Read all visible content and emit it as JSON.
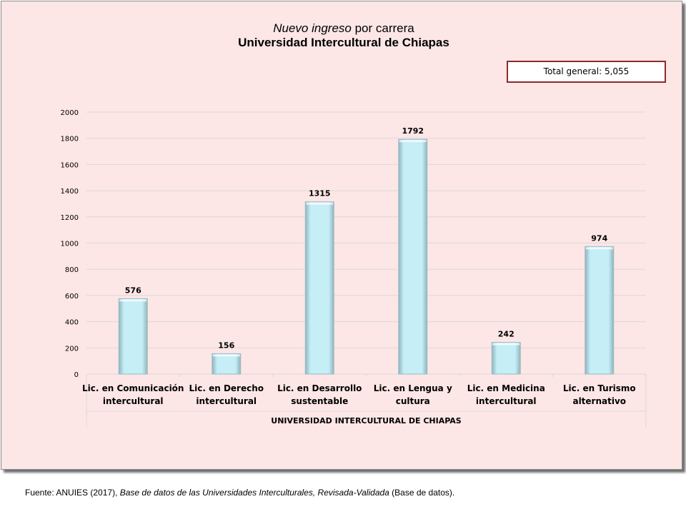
{
  "chart_data": {
    "type": "bar",
    "title_italic": "Nuevo ingreso",
    "title_rest": " por carrera",
    "subtitle": "Universidad Intercultural de Chiapas",
    "categories": [
      [
        "Lic. en Comunicación",
        "intercultural"
      ],
      [
        "Lic. en Derecho",
        "intercultural"
      ],
      [
        "Lic. en Desarrollo",
        "sustentable"
      ],
      [
        "Lic. en Lengua y",
        "cultura"
      ],
      [
        "Lic. en Medicina",
        "intercultural"
      ],
      [
        "Lic. en Turismo",
        "alternativo"
      ]
    ],
    "values": [
      576,
      156,
      1315,
      1792,
      242,
      974
    ],
    "data_labels": [
      "576",
      "156",
      "1315",
      "1792",
      "242",
      "974"
    ],
    "xlabel": "UNIVERSIDAD INTERCULTURAL DE CHIAPAS",
    "ylabel": "",
    "ylim": [
      0,
      2000
    ],
    "yticks": [
      "0",
      "200",
      "400",
      "600",
      "800",
      "1000",
      "1200",
      "1400",
      "1600",
      "1800",
      "2000"
    ],
    "grid": true,
    "bar_color": "#c5eef7",
    "background_color": "#fde6e6"
  },
  "total_box": {
    "label": "Total general: 5,055"
  },
  "source": {
    "prefix": "Fuente: ANUIES (2017), ",
    "italic": "Base de datos de las Universidades  Interculturales, Revisada-Validada",
    "suffix": "  (Base de datos)."
  }
}
